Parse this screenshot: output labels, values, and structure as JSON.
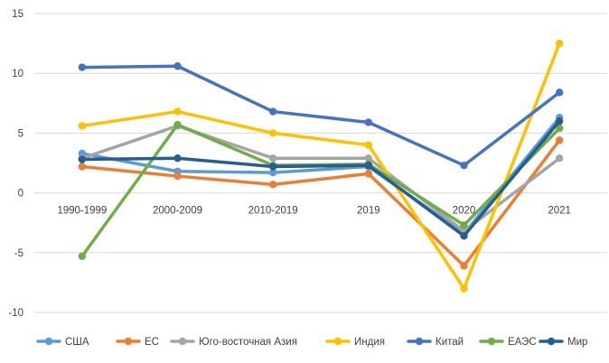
{
  "chart_data": {
    "type": "line",
    "title": "",
    "xlabel": "",
    "ylabel": "",
    "categories": [
      "1990-1999",
      "2000-2009",
      "2010-2019",
      "2019",
      "2020",
      "2021"
    ],
    "ylim": [
      -10,
      15
    ],
    "yticks": [
      -10,
      -5,
      0,
      5,
      10,
      15
    ],
    "grid": "horizontal",
    "legend_position": "bottom",
    "series": [
      {
        "name": "США",
        "color": "#5b9bd5",
        "values": [
          3.3,
          1.8,
          1.7,
          2.2,
          -3.4,
          6.3
        ]
      },
      {
        "name": "ЕС",
        "color": "#ed7d31",
        "values": [
          2.2,
          1.4,
          0.7,
          1.6,
          -6.1,
          4.4
        ]
      },
      {
        "name": "Юго-восточная Азия",
        "color": "#a5a5a5",
        "values": [
          2.9,
          5.6,
          2.9,
          2.9,
          -3.2,
          2.9
        ]
      },
      {
        "name": "Индия",
        "color": "#ffc000",
        "values": [
          5.6,
          6.8,
          5.0,
          4.0,
          -8.0,
          12.5
        ]
      },
      {
        "name": "Китай",
        "color": "#4472c4",
        "values": [
          10.5,
          10.6,
          6.8,
          5.9,
          2.3,
          8.4
        ]
      },
      {
        "name": "ЕАЭС",
        "color": "#70ad47",
        "values": [
          -5.3,
          5.7,
          2.3,
          2.4,
          -2.7,
          5.4
        ]
      },
      {
        "name": "Мир",
        "color": "#255e91",
        "values": [
          2.8,
          2.9,
          2.2,
          2.3,
          -3.6,
          6.0
        ]
      }
    ]
  }
}
